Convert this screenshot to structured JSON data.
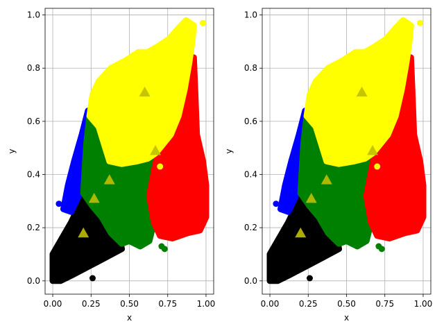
{
  "chart_data": [
    {
      "type": "scatter",
      "title": "",
      "xlabel": "x",
      "ylabel": "y",
      "xlim": [
        -0.05,
        1.05
      ],
      "ylim": [
        -0.05,
        1.025
      ],
      "xticks": [
        "0.00",
        "0.25",
        "0.50",
        "0.75",
        "1.00"
      ],
      "yticks": [
        "0.0",
        "0.2",
        "0.4",
        "0.6",
        "0.8",
        "1.0"
      ],
      "grid": true,
      "legend": "none",
      "clusters": [
        {
          "color": "#000000",
          "polygon": [
            [
              0.0,
              0.0
            ],
            [
              0.0,
              0.1
            ],
            [
              0.05,
              0.15
            ],
            [
              0.12,
              0.22
            ],
            [
              0.17,
              0.28
            ],
            [
              0.2,
              0.33
            ],
            [
              0.26,
              0.28
            ],
            [
              0.32,
              0.24
            ],
            [
              0.38,
              0.18
            ],
            [
              0.44,
              0.15
            ],
            [
              0.45,
              0.12
            ],
            [
              0.32,
              0.08
            ],
            [
              0.22,
              0.05
            ],
            [
              0.12,
              0.02
            ],
            [
              0.05,
              0.0
            ]
          ]
        },
        {
          "color": "#0000ff",
          "polygon": [
            [
              0.07,
              0.27
            ],
            [
              0.1,
              0.36
            ],
            [
              0.14,
              0.45
            ],
            [
              0.19,
              0.55
            ],
            [
              0.23,
              0.64
            ],
            [
              0.26,
              0.6
            ],
            [
              0.24,
              0.48
            ],
            [
              0.2,
              0.4
            ],
            [
              0.17,
              0.32
            ],
            [
              0.12,
              0.26
            ]
          ]
        },
        {
          "color": "#008000",
          "polygon": [
            [
              0.2,
              0.33
            ],
            [
              0.21,
              0.43
            ],
            [
              0.22,
              0.52
            ],
            [
              0.24,
              0.62
            ],
            [
              0.26,
              0.65
            ],
            [
              0.3,
              0.58
            ],
            [
              0.36,
              0.46
            ],
            [
              0.45,
              0.44
            ],
            [
              0.55,
              0.45
            ],
            [
              0.62,
              0.46
            ],
            [
              0.67,
              0.48
            ],
            [
              0.7,
              0.5
            ],
            [
              0.67,
              0.44
            ],
            [
              0.63,
              0.32
            ],
            [
              0.66,
              0.22
            ],
            [
              0.63,
              0.15
            ],
            [
              0.57,
              0.13
            ],
            [
              0.5,
              0.15
            ],
            [
              0.45,
              0.14
            ],
            [
              0.38,
              0.18
            ],
            [
              0.32,
              0.24
            ],
            [
              0.26,
              0.28
            ]
          ]
        },
        {
          "color": "#ff0000",
          "polygon": [
            [
              0.63,
              0.32
            ],
            [
              0.67,
              0.44
            ],
            [
              0.7,
              0.5
            ],
            [
              0.77,
              0.55
            ],
            [
              0.82,
              0.62
            ],
            [
              0.86,
              0.72
            ],
            [
              0.88,
              0.79
            ],
            [
              0.92,
              0.84
            ],
            [
              0.93,
              0.7
            ],
            [
              0.94,
              0.55
            ],
            [
              0.98,
              0.45
            ],
            [
              1.0,
              0.36
            ],
            [
              1.0,
              0.24
            ],
            [
              0.96,
              0.19
            ],
            [
              0.88,
              0.18
            ],
            [
              0.78,
              0.16
            ],
            [
              0.7,
              0.17
            ],
            [
              0.66,
              0.22
            ]
          ]
        },
        {
          "color": "#ffff00",
          "polygon": [
            [
              0.24,
              0.62
            ],
            [
              0.26,
              0.7
            ],
            [
              0.3,
              0.75
            ],
            [
              0.38,
              0.8
            ],
            [
              0.48,
              0.83
            ],
            [
              0.56,
              0.86
            ],
            [
              0.62,
              0.86
            ],
            [
              0.68,
              0.88
            ],
            [
              0.76,
              0.91
            ],
            [
              0.82,
              0.95
            ],
            [
              0.87,
              0.98
            ],
            [
              0.92,
              0.96
            ],
            [
              0.91,
              0.9
            ],
            [
              0.89,
              0.82
            ],
            [
              0.86,
              0.72
            ],
            [
              0.82,
              0.62
            ],
            [
              0.77,
              0.55
            ],
            [
              0.7,
              0.5
            ],
            [
              0.67,
              0.48
            ],
            [
              0.62,
              0.46
            ],
            [
              0.55,
              0.45
            ],
            [
              0.45,
              0.44
            ],
            [
              0.37,
              0.45
            ],
            [
              0.3,
              0.58
            ]
          ]
        }
      ],
      "centroids": [
        {
          "x": 0.2,
          "y": 0.18
        },
        {
          "x": 0.27,
          "y": 0.31
        },
        {
          "x": 0.37,
          "y": 0.38
        },
        {
          "x": 0.6,
          "y": 0.71
        },
        {
          "x": 0.67,
          "y": 0.49
        }
      ],
      "centroid_color": "#bfbf00",
      "outliers": [
        {
          "x": 0.98,
          "y": 0.97,
          "color": "#ffff00"
        },
        {
          "x": 0.71,
          "y": 0.13,
          "color": "#008000"
        },
        {
          "x": 0.73,
          "y": 0.12,
          "color": "#008000"
        },
        {
          "x": 0.7,
          "y": 0.43,
          "color": "#ffff00"
        },
        {
          "x": 0.26,
          "y": 0.01,
          "color": "#000000"
        },
        {
          "x": 0.04,
          "y": 0.29,
          "color": "#0000ff"
        }
      ]
    },
    {
      "type": "scatter",
      "title": "",
      "xlabel": "x",
      "ylabel": "y",
      "xlim": [
        -0.05,
        1.05
      ],
      "ylim": [
        -0.05,
        1.025
      ],
      "xticks": [
        "0.00",
        "0.25",
        "0.50",
        "0.75",
        "1.00"
      ],
      "yticks": [
        "0.0",
        "0.2",
        "0.4",
        "0.6",
        "0.8",
        "1.0"
      ],
      "grid": true,
      "legend": "none",
      "clusters": [
        {
          "color": "#000000",
          "polygon": [
            [
              0.0,
              0.0
            ],
            [
              0.0,
              0.1
            ],
            [
              0.05,
              0.15
            ],
            [
              0.12,
              0.22
            ],
            [
              0.17,
              0.28
            ],
            [
              0.2,
              0.33
            ],
            [
              0.26,
              0.28
            ],
            [
              0.32,
              0.24
            ],
            [
              0.38,
              0.18
            ],
            [
              0.44,
              0.15
            ],
            [
              0.45,
              0.12
            ],
            [
              0.32,
              0.08
            ],
            [
              0.22,
              0.05
            ],
            [
              0.12,
              0.02
            ],
            [
              0.05,
              0.0
            ]
          ]
        },
        {
          "color": "#0000ff",
          "polygon": [
            [
              0.07,
              0.27
            ],
            [
              0.1,
              0.36
            ],
            [
              0.14,
              0.45
            ],
            [
              0.19,
              0.55
            ],
            [
              0.23,
              0.64
            ],
            [
              0.26,
              0.6
            ],
            [
              0.24,
              0.48
            ],
            [
              0.2,
              0.4
            ],
            [
              0.17,
              0.32
            ],
            [
              0.12,
              0.26
            ]
          ]
        },
        {
          "color": "#008000",
          "polygon": [
            [
              0.2,
              0.33
            ],
            [
              0.21,
              0.43
            ],
            [
              0.22,
              0.52
            ],
            [
              0.24,
              0.62
            ],
            [
              0.26,
              0.65
            ],
            [
              0.3,
              0.58
            ],
            [
              0.36,
              0.46
            ],
            [
              0.45,
              0.44
            ],
            [
              0.55,
              0.45
            ],
            [
              0.62,
              0.46
            ],
            [
              0.67,
              0.48
            ],
            [
              0.7,
              0.5
            ],
            [
              0.67,
              0.44
            ],
            [
              0.63,
              0.32
            ],
            [
              0.66,
              0.22
            ],
            [
              0.63,
              0.15
            ],
            [
              0.57,
              0.13
            ],
            [
              0.5,
              0.15
            ],
            [
              0.45,
              0.14
            ],
            [
              0.38,
              0.18
            ],
            [
              0.32,
              0.24
            ],
            [
              0.26,
              0.28
            ]
          ]
        },
        {
          "color": "#ff0000",
          "polygon": [
            [
              0.63,
              0.32
            ],
            [
              0.67,
              0.44
            ],
            [
              0.7,
              0.5
            ],
            [
              0.77,
              0.55
            ],
            [
              0.82,
              0.62
            ],
            [
              0.86,
              0.72
            ],
            [
              0.88,
              0.79
            ],
            [
              0.92,
              0.84
            ],
            [
              0.93,
              0.7
            ],
            [
              0.94,
              0.55
            ],
            [
              0.98,
              0.45
            ],
            [
              1.0,
              0.36
            ],
            [
              1.0,
              0.24
            ],
            [
              0.96,
              0.19
            ],
            [
              0.88,
              0.18
            ],
            [
              0.78,
              0.16
            ],
            [
              0.7,
              0.17
            ],
            [
              0.66,
              0.22
            ]
          ]
        },
        {
          "color": "#ffff00",
          "polygon": [
            [
              0.24,
              0.62
            ],
            [
              0.26,
              0.7
            ],
            [
              0.3,
              0.75
            ],
            [
              0.38,
              0.8
            ],
            [
              0.48,
              0.83
            ],
            [
              0.56,
              0.86
            ],
            [
              0.62,
              0.86
            ],
            [
              0.68,
              0.88
            ],
            [
              0.76,
              0.91
            ],
            [
              0.82,
              0.95
            ],
            [
              0.87,
              0.98
            ],
            [
              0.92,
              0.96
            ],
            [
              0.91,
              0.9
            ],
            [
              0.89,
              0.82
            ],
            [
              0.86,
              0.72
            ],
            [
              0.82,
              0.62
            ],
            [
              0.77,
              0.55
            ],
            [
              0.7,
              0.5
            ],
            [
              0.67,
              0.48
            ],
            [
              0.62,
              0.46
            ],
            [
              0.55,
              0.45
            ],
            [
              0.45,
              0.44
            ],
            [
              0.37,
              0.45
            ],
            [
              0.3,
              0.58
            ]
          ]
        }
      ],
      "centroids": [
        {
          "x": 0.2,
          "y": 0.18
        },
        {
          "x": 0.27,
          "y": 0.31
        },
        {
          "x": 0.37,
          "y": 0.38
        },
        {
          "x": 0.6,
          "y": 0.71
        },
        {
          "x": 0.67,
          "y": 0.49
        }
      ],
      "centroid_color": "#bfbf00",
      "outliers": [
        {
          "x": 0.98,
          "y": 0.97,
          "color": "#ffff00"
        },
        {
          "x": 0.71,
          "y": 0.13,
          "color": "#008000"
        },
        {
          "x": 0.73,
          "y": 0.12,
          "color": "#008000"
        },
        {
          "x": 0.7,
          "y": 0.43,
          "color": "#ffff00"
        },
        {
          "x": 0.26,
          "y": 0.01,
          "color": "#000000"
        },
        {
          "x": 0.04,
          "y": 0.29,
          "color": "#0000ff"
        }
      ]
    }
  ]
}
